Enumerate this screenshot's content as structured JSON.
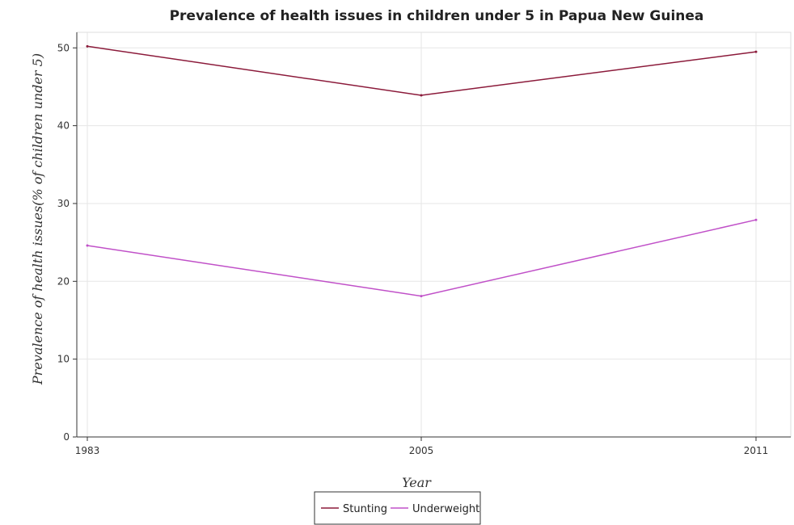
{
  "chart_data": {
    "type": "line",
    "title": "Prevalence of health issues in children under 5 in Papua New Guinea",
    "xlabel": "Year",
    "ylabel": "Prevalence of health issues(% of children under 5)",
    "categories": [
      "1983",
      "2005",
      "2011"
    ],
    "ylim": [
      0,
      52
    ],
    "yticks": [
      0,
      10,
      20,
      30,
      40,
      50
    ],
    "grid": true,
    "legend_position": "bottom-center",
    "series": [
      {
        "name": "Stunting",
        "color": "#8b1a3a",
        "values": [
          50.2,
          43.9,
          49.5
        ]
      },
      {
        "name": "Underweight",
        "color": "#c050c8",
        "values": [
          24.6,
          18.1,
          27.9
        ]
      }
    ]
  }
}
